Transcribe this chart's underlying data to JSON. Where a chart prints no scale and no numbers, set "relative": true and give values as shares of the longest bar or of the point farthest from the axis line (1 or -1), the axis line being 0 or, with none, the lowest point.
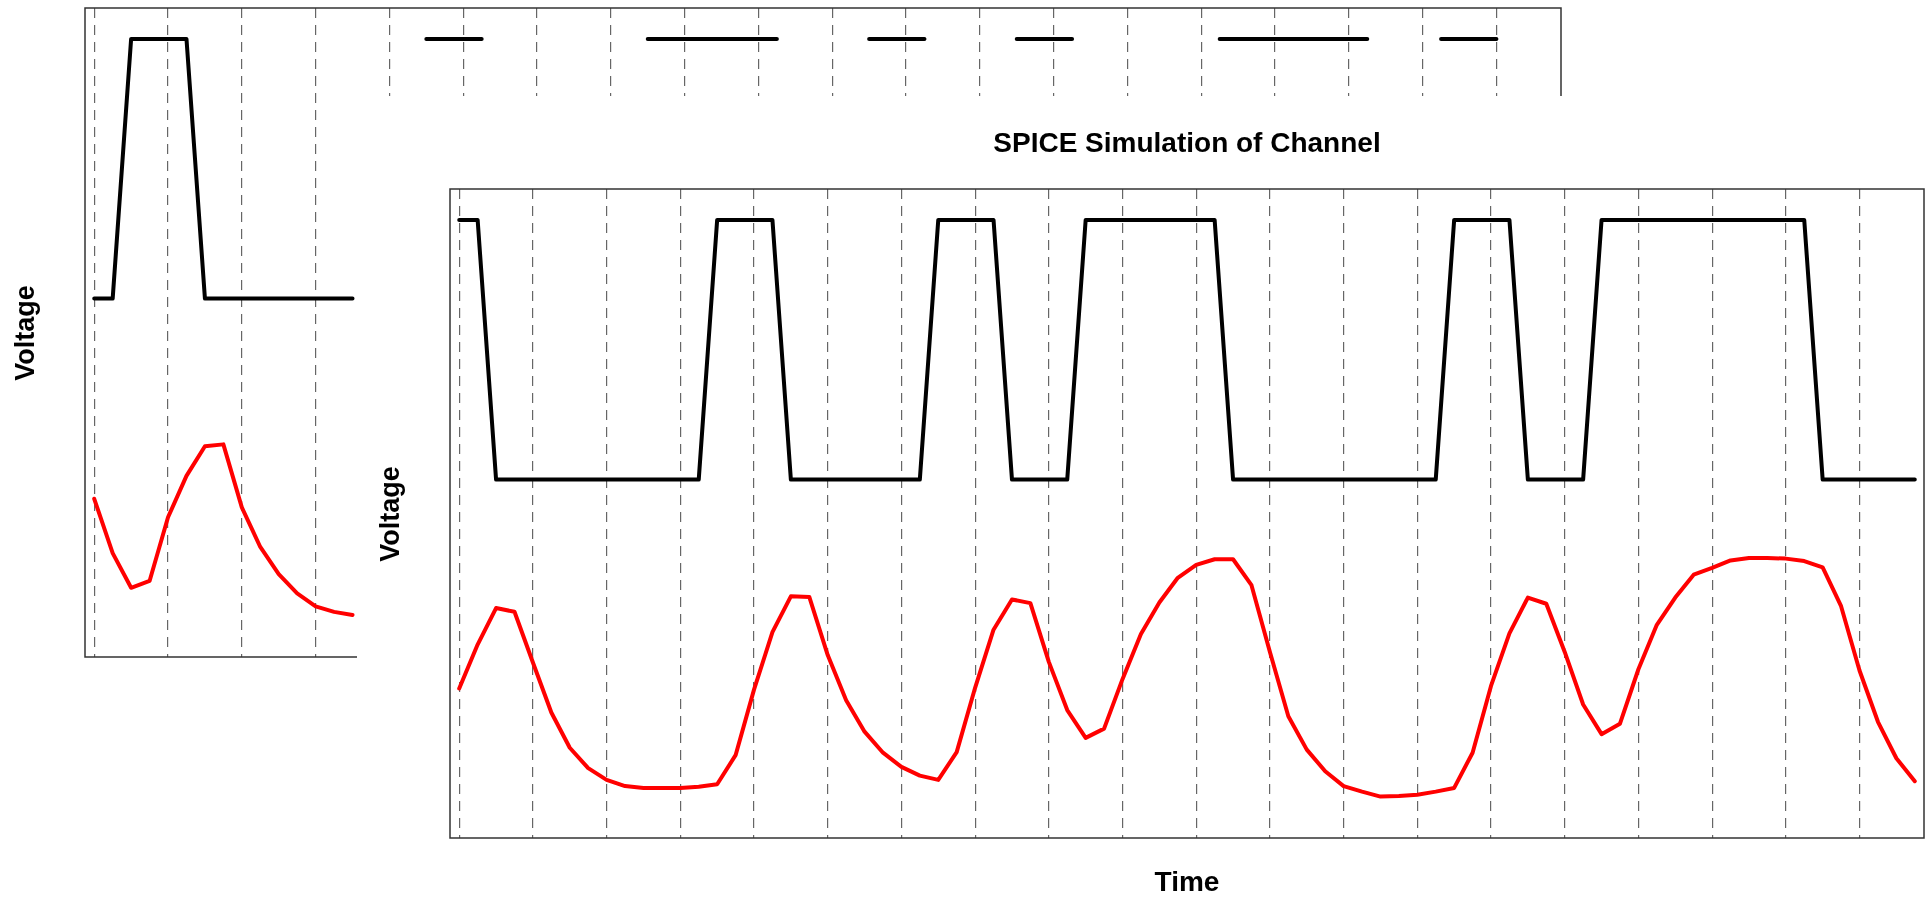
{
  "chart_data": [
    {
      "type": "line",
      "ylabel": "Voltage",
      "relative": true,
      "categories": [
        null,
        null,
        null,
        null,
        null,
        null,
        null,
        null,
        null,
        null,
        null,
        null,
        null,
        null,
        null,
        null,
        null,
        null,
        null,
        null,
        null,
        null,
        null,
        null,
        null,
        null,
        null,
        null,
        null,
        null,
        null,
        null,
        null,
        null,
        null,
        null,
        null,
        null,
        null,
        null,
        null,
        null,
        null,
        null,
        null,
        null,
        null,
        null,
        null,
        null,
        null,
        null,
        null,
        null,
        null,
        null,
        null,
        null,
        null,
        null,
        null,
        null,
        null,
        null,
        null,
        null,
        null,
        null,
        null,
        null,
        null,
        null,
        null,
        null,
        null,
        null,
        null,
        null,
        null,
        null
      ],
      "grid": "x",
      "legend": false,
      "tick_labels": false,
      "marker": "none",
      "line_style": "solid",
      "series": [
        {
          "color": "#000000",
          "values": [
            0.58,
            0.58,
            1,
            1,
            1,
            1,
            0.58,
            0.58,
            0.58,
            0.58,
            0.58,
            0.58,
            0.58,
            0.58,
            0.58,
            null,
            null,
            null,
            1,
            1,
            1,
            1,
            null,
            null,
            null,
            null,
            null,
            null,
            null,
            null,
            1,
            1,
            1,
            1,
            1,
            1,
            1,
            1,
            null,
            null,
            null,
            null,
            1,
            1,
            1,
            1,
            null,
            null,
            null,
            null,
            1,
            1,
            1,
            1,
            null,
            null,
            null,
            null,
            null,
            null,
            null,
            1,
            1,
            1,
            1,
            1,
            1,
            1,
            1,
            1,
            null,
            null,
            null,
            1,
            1,
            1,
            1,
            null,
            null,
            null
          ]
        },
        {
          "color": "#ff0000",
          "values": [
            0.256,
            0.168,
            0.112,
            0.123,
            0.226,
            0.293,
            0.341,
            0.344,
            0.242,
            0.178,
            0.134,
            0.103,
            0.082,
            0.073,
            0.068,
            null,
            null,
            null,
            null,
            null,
            null,
            null,
            null,
            null,
            null,
            null,
            null,
            null,
            null,
            null,
            null,
            null,
            null,
            null,
            null,
            null,
            null,
            null,
            null,
            null,
            null,
            null,
            null,
            null,
            null,
            null,
            null,
            null,
            null,
            null,
            null,
            null,
            null,
            null,
            null,
            null,
            null,
            null,
            null,
            null,
            null,
            null,
            null,
            null,
            null,
            null,
            null,
            null,
            null,
            null,
            null,
            null,
            null,
            null,
            null,
            null,
            null,
            null,
            null,
            null
          ]
        }
      ]
    },
    {
      "type": "line",
      "title": "SPICE Simulation of Channel",
      "xlabel": "Time",
      "ylabel": "Voltage",
      "relative": true,
      "categories": [
        null,
        null,
        null,
        null,
        null,
        null,
        null,
        null,
        null,
        null,
        null,
        null,
        null,
        null,
        null,
        null,
        null,
        null,
        null,
        null,
        null,
        null,
        null,
        null,
        null,
        null,
        null,
        null,
        null,
        null,
        null,
        null,
        null,
        null,
        null,
        null,
        null,
        null,
        null,
        null,
        null,
        null,
        null,
        null,
        null,
        null,
        null,
        null,
        null,
        null,
        null,
        null,
        null,
        null,
        null,
        null,
        null,
        null,
        null,
        null,
        null,
        null,
        null,
        null,
        null,
        null,
        null,
        null,
        null,
        null,
        null,
        null,
        null,
        null,
        null,
        null,
        null,
        null,
        null,
        null
      ],
      "grid": "x",
      "legend": false,
      "tick_labels": false,
      "marker": "none",
      "line_style": "solid",
      "series": [
        {
          "color": "#000000",
          "values": [
            1,
            1,
            0.58,
            0.58,
            0.58,
            0.58,
            0.58,
            0.58,
            0.58,
            0.58,
            0.58,
            0.58,
            0.58,
            0.58,
            1,
            1,
            1,
            1,
            0.58,
            0.58,
            0.58,
            0.58,
            0.58,
            0.58,
            0.58,
            0.58,
            1,
            1,
            1,
            1,
            0.58,
            0.58,
            0.58,
            0.58,
            1,
            1,
            1,
            1,
            1,
            1,
            1,
            1,
            0.58,
            0.58,
            0.58,
            0.58,
            0.58,
            0.58,
            0.58,
            0.58,
            0.58,
            0.58,
            0.58,
            0.58,
            1,
            1,
            1,
            1,
            0.58,
            0.58,
            0.58,
            0.58,
            1,
            1,
            1,
            1,
            1,
            1,
            1,
            1,
            1,
            1,
            1,
            1,
            0.58,
            0.58,
            0.58,
            0.58,
            0.58,
            0.58
          ]
        },
        {
          "color": "#ff0000",
          "values": [
            0.242,
            0.313,
            0.372,
            0.366,
            0.284,
            0.203,
            0.146,
            0.113,
            0.094,
            0.084,
            0.081,
            0.081,
            0.081,
            0.083,
            0.087,
            0.134,
            0.24,
            0.333,
            0.391,
            0.39,
            0.296,
            0.223,
            0.172,
            0.138,
            0.115,
            0.101,
            0.094,
            0.139,
            0.243,
            0.337,
            0.386,
            0.38,
            0.285,
            0.207,
            0.162,
            0.177,
            0.257,
            0.33,
            0.381,
            0.421,
            0.442,
            0.451,
            0.451,
            0.409,
            0.301,
            0.197,
            0.143,
            0.108,
            0.084,
            0.075,
            0.067,
            0.068,
            0.07,
            0.075,
            0.081,
            0.138,
            0.246,
            0.331,
            0.389,
            0.379,
            0.301,
            0.216,
            0.168,
            0.185,
            0.273,
            0.345,
            0.389,
            0.426,
            0.437,
            0.449,
            0.453,
            0.453,
            0.452,
            0.448,
            0.438,
            0.375,
            0.271,
            0.188,
            0.129,
            0.092
          ]
        }
      ]
    }
  ]
}
